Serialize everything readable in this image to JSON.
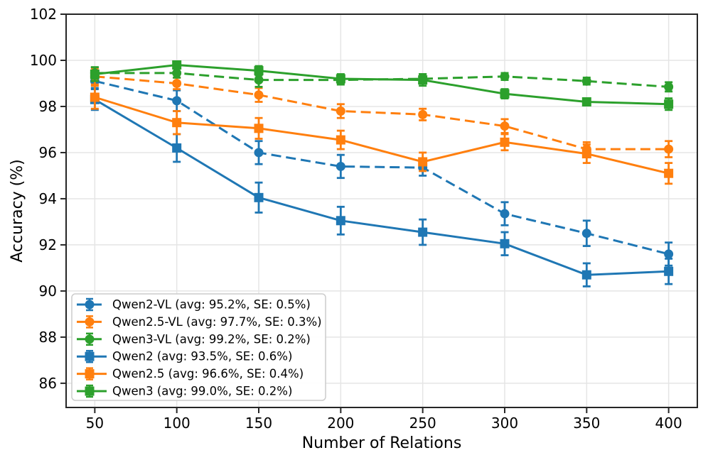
{
  "chart_data": {
    "type": "line",
    "title": "",
    "xlabel": "Number of Relations",
    "ylabel": "Accuracy (%)",
    "x": [
      50,
      100,
      150,
      200,
      250,
      300,
      350,
      400
    ],
    "xticks": [
      50,
      100,
      150,
      200,
      250,
      300,
      350,
      400
    ],
    "yticks": [
      86,
      88,
      90,
      92,
      94,
      96,
      98,
      100,
      102
    ],
    "xlim": [
      32.5,
      417.5
    ],
    "ylim": [
      84.95,
      102.0
    ],
    "grid": true,
    "legend_position": "lower-left",
    "series": [
      {
        "name": "Qwen2-VL (avg: 95.2%, SE: 0.5%)",
        "color": "#1f77b4",
        "linestyle": "dashed",
        "marker": "circle",
        "values": [
          99.1,
          98.25,
          96.0,
          95.4,
          95.35,
          93.35,
          92.5,
          91.6
        ],
        "errors": [
          0.3,
          0.45,
          0.5,
          0.5,
          0.35,
          0.5,
          0.55,
          0.5
        ]
      },
      {
        "name": "Qwen2.5-VL (avg: 97.7%, SE: 0.3%)",
        "color": "#ff7f0e",
        "linestyle": "dashed",
        "marker": "circle",
        "values": [
          99.3,
          99.0,
          98.5,
          97.8,
          97.65,
          97.15,
          96.15,
          96.15
        ],
        "errors": [
          0.35,
          0.25,
          0.3,
          0.3,
          0.25,
          0.3,
          0.3,
          0.35
        ]
      },
      {
        "name": "Qwen3-VL (avg: 99.2%, SE: 0.2%)",
        "color": "#2ca02c",
        "linestyle": "dashed",
        "marker": "circle",
        "values": [
          99.45,
          99.45,
          99.15,
          99.15,
          99.2,
          99.3,
          99.1,
          98.85
        ],
        "errors": [
          0.25,
          0.2,
          0.3,
          0.2,
          0.2,
          0.15,
          0.15,
          0.2
        ]
      },
      {
        "name": "Qwen2 (avg: 93.5%, SE: 0.6%)",
        "color": "#1f77b4",
        "linestyle": "solid",
        "marker": "square",
        "values": [
          98.3,
          96.2,
          94.05,
          93.05,
          92.55,
          92.05,
          90.7,
          90.85
        ],
        "errors": [
          0.45,
          0.6,
          0.65,
          0.6,
          0.55,
          0.5,
          0.5,
          0.55
        ]
      },
      {
        "name": "Qwen2.5 (avg: 96.6%, SE: 0.4%)",
        "color": "#ff7f0e",
        "linestyle": "solid",
        "marker": "square",
        "values": [
          98.4,
          97.3,
          97.05,
          96.55,
          95.6,
          96.45,
          95.95,
          95.1
        ],
        "errors": [
          0.5,
          0.5,
          0.45,
          0.4,
          0.4,
          0.35,
          0.4,
          0.45
        ]
      },
      {
        "name": "Qwen3 (avg: 99.0%, SE: 0.2%)",
        "color": "#2ca02c",
        "linestyle": "solid",
        "marker": "square",
        "values": [
          99.4,
          99.8,
          99.55,
          99.2,
          99.15,
          98.55,
          98.2,
          98.1
        ],
        "errors": [
          0.3,
          0.15,
          0.2,
          0.2,
          0.25,
          0.2,
          0.15,
          0.25
        ]
      }
    ]
  }
}
